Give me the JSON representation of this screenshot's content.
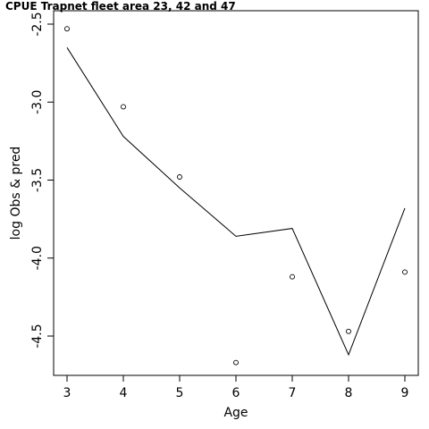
{
  "chart_data": {
    "type": "line",
    "title": "CPUE Trapnet fleet area 23, 42 and 47",
    "xlabel": "Age",
    "ylabel": "log Obs & pred",
    "xlim": [
      3,
      9
    ],
    "ylim": [
      -4.5,
      -2.5
    ],
    "x_ticks": [
      3,
      4,
      5,
      6,
      7,
      8,
      9
    ],
    "y_ticks": [
      -2.5,
      -3.0,
      -3.5,
      -4.0,
      -4.5
    ],
    "y_tick_labels": [
      "-2.5",
      "-3.0",
      "-3.5",
      "-4.0",
      "-4.5"
    ],
    "x": [
      3,
      4,
      5,
      6,
      7,
      8,
      9
    ],
    "series": [
      {
        "style": "points",
        "values": [
          -2.53,
          -3.03,
          -3.48,
          -4.67,
          -4.12,
          -4.47,
          -4.09
        ]
      },
      {
        "style": "line",
        "values": [
          -2.65,
          -3.22,
          -3.55,
          -3.86,
          -3.81,
          -4.62,
          -3.68
        ]
      }
    ],
    "grid": false,
    "legend": "none"
  }
}
